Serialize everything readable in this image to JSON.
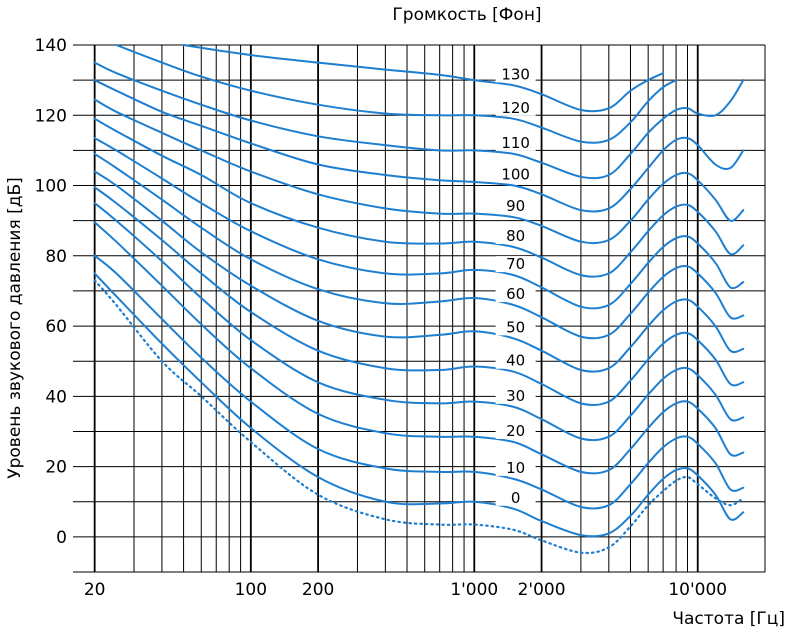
{
  "chart_data": {
    "type": "line",
    "title": "Громкость [Фон]",
    "xlabel": "Частота [Гц]",
    "ylabel": "Уровень звукового давления [дБ]",
    "x_scale": "log",
    "xlim": [
      16,
      20000
    ],
    "ylim": [
      -10,
      140
    ],
    "grid": true,
    "x_ticks": [
      {
        "value": 20,
        "label": "20"
      },
      {
        "value": 100,
        "label": "100"
      },
      {
        "value": 200,
        "label": "200"
      },
      {
        "value": 1000,
        "label": "1'000"
      },
      {
        "value": 2000,
        "label": "2'000"
      },
      {
        "value": 10000,
        "label": "10'000"
      }
    ],
    "y_ticks": [
      0,
      20,
      40,
      60,
      80,
      100,
      120,
      140
    ],
    "line_color": "#1e7fd0",
    "series": [
      {
        "name": "130",
        "label_x": 1500,
        "x": [
          50,
          80,
          120,
          200,
          400,
          700,
          1000,
          1500,
          2000,
          3000,
          4000,
          5000,
          6000,
          7000
        ],
        "y": [
          140,
          138,
          136.5,
          135,
          133,
          131.5,
          130,
          128.5,
          126,
          121.5,
          122,
          127,
          130,
          132
        ]
      },
      {
        "name": "120",
        "label_x": 1500,
        "x": [
          25,
          40,
          60,
          100,
          200,
          400,
          700,
          1000,
          1500,
          2000,
          3000,
          4000,
          5000,
          6000,
          7000,
          8000
        ],
        "y": [
          140,
          135,
          131,
          127,
          123,
          120.5,
          120,
          120,
          119,
          116.5,
          112.5,
          113,
          118,
          124,
          128,
          130
        ]
      },
      {
        "name": "110",
        "label_x": 1500,
        "x": [
          20,
          25,
          40,
          60,
          100,
          200,
          400,
          700,
          1000,
          1500,
          2000,
          3000,
          4000,
          5000,
          6000,
          7000,
          8000,
          9000,
          10000,
          12000,
          14000,
          16000
        ],
        "y": [
          135,
          132,
          127,
          123,
          118.5,
          114,
          111.5,
          110,
          110,
          109,
          106.5,
          102.5,
          103,
          109,
          115,
          119,
          121.5,
          122,
          120.5,
          120,
          124,
          130
        ]
      },
      {
        "name": "100",
        "label_x": 1500,
        "x": [
          20,
          25,
          40,
          60,
          100,
          200,
          400,
          700,
          1000,
          1500,
          2000,
          3000,
          4000,
          5000,
          6000,
          7000,
          8000,
          9000,
          10000,
          12000,
          14000,
          16000
        ],
        "y": [
          130,
          127,
          121,
          117,
          112,
          106,
          103,
          101.5,
          101,
          100,
          97.5,
          93,
          93.5,
          99,
          105,
          110,
          113,
          113.5,
          111.5,
          106,
          105,
          110
        ]
      },
      {
        "name": "90",
        "label_x": 1500,
        "x": [
          20,
          25,
          40,
          60,
          100,
          200,
          400,
          700,
          1000,
          1500,
          2000,
          3000,
          4000,
          5000,
          6000,
          7000,
          8000,
          9000,
          10000,
          12000,
          14000,
          16000
        ],
        "y": [
          124.5,
          121,
          115,
          110,
          104,
          97.5,
          93.5,
          92,
          92,
          91,
          88.5,
          84,
          84.5,
          90,
          96,
          100.5,
          103,
          103.5,
          101.5,
          96,
          90,
          93
        ]
      },
      {
        "name": "80",
        "label_x": 1500,
        "x": [
          20,
          25,
          40,
          60,
          100,
          200,
          400,
          700,
          1000,
          1500,
          2000,
          3000,
          4000,
          5000,
          6000,
          7000,
          8000,
          9000,
          10000,
          12000,
          14000,
          16000
        ],
        "y": [
          119,
          115.5,
          108.5,
          103,
          95,
          88,
          84,
          83.5,
          84,
          82.5,
          79.5,
          74.5,
          75,
          81,
          87,
          91.5,
          94,
          94.5,
          92.5,
          87,
          80.5,
          83
        ]
      },
      {
        "name": "70",
        "label_x": 1500,
        "x": [
          20,
          25,
          40,
          60,
          100,
          200,
          400,
          700,
          1000,
          1500,
          2000,
          3000,
          4000,
          5000,
          6000,
          7000,
          8000,
          9000,
          10000,
          12000,
          14000,
          16000
        ],
        "y": [
          113.5,
          110,
          102,
          95,
          87,
          79,
          75,
          75,
          76,
          74.5,
          71,
          65.5,
          66,
          72,
          78,
          82.5,
          85,
          85.5,
          83.5,
          78,
          71,
          72.5
        ]
      },
      {
        "name": "60",
        "label_x": 1500,
        "x": [
          20,
          25,
          40,
          60,
          100,
          200,
          400,
          700,
          1000,
          1500,
          2000,
          3000,
          4000,
          5000,
          6000,
          7000,
          8000,
          9000,
          10000,
          12000,
          14000,
          16000
        ],
        "y": [
          109,
          105,
          96,
          88,
          79,
          70.5,
          66.5,
          67,
          68,
          66,
          62.5,
          57,
          57.5,
          63.5,
          69.5,
          74,
          76.5,
          77,
          75,
          69.5,
          62.5,
          63
        ]
      },
      {
        "name": "50",
        "label_x": 1500,
        "x": [
          20,
          25,
          40,
          60,
          100,
          200,
          400,
          700,
          1000,
          1500,
          2000,
          3000,
          4000,
          5000,
          6000,
          7000,
          8000,
          9000,
          10000,
          12000,
          14000,
          16000
        ],
        "y": [
          104,
          100,
          90,
          81,
          71.5,
          61.5,
          57,
          57.5,
          58.5,
          56.5,
          53,
          47.5,
          48,
          54,
          60,
          64.5,
          67,
          67.5,
          65.5,
          60,
          53,
          53.5
        ]
      },
      {
        "name": "40",
        "label_x": 1500,
        "x": [
          20,
          25,
          40,
          60,
          100,
          200,
          400,
          700,
          1000,
          1500,
          2000,
          3000,
          4000,
          5000,
          6000,
          7000,
          8000,
          9000,
          10000,
          12000,
          14000,
          16000
        ],
        "y": [
          99.5,
          95,
          84.5,
          75,
          64,
          53,
          48,
          47.5,
          48.5,
          47,
          43.5,
          38,
          38.5,
          44.5,
          50.5,
          55,
          57.5,
          58,
          56,
          50.5,
          43.5,
          44
        ]
      },
      {
        "name": "30",
        "label_x": 1500,
        "x": [
          20,
          25,
          40,
          60,
          100,
          200,
          400,
          700,
          1000,
          1500,
          2000,
          3000,
          4000,
          5000,
          6000,
          7000,
          8000,
          9000,
          10000,
          12000,
          14000,
          16000
        ],
        "y": [
          95,
          90,
          78.5,
          68,
          56,
          44,
          39,
          38,
          38.5,
          37,
          33.5,
          28,
          28.5,
          34.5,
          40.5,
          45,
          47.5,
          48,
          46,
          40.5,
          33.5,
          34
        ]
      },
      {
        "name": "20",
        "label_x": 1500,
        "x": [
          20,
          25,
          40,
          60,
          100,
          200,
          400,
          700,
          1000,
          1500,
          2000,
          3000,
          4000,
          5000,
          6000,
          7000,
          8000,
          9000,
          10000,
          12000,
          14000,
          16000
        ],
        "y": [
          89.5,
          84,
          71.5,
          60.5,
          48,
          35,
          29.5,
          28.5,
          28.5,
          27,
          23.5,
          18.5,
          19,
          25,
          31,
          35.5,
          38,
          38.5,
          36.5,
          31,
          23.5,
          24
        ]
      },
      {
        "name": "10",
        "label_x": 1500,
        "x": [
          20,
          25,
          40,
          60,
          100,
          200,
          400,
          700,
          1000,
          1500,
          2000,
          3000,
          4000,
          5000,
          6000,
          7000,
          8000,
          9000,
          10000,
          12000,
          14000,
          16000
        ],
        "y": [
          80,
          75,
          62,
          51,
          38.5,
          25,
          19.5,
          18.5,
          18.5,
          16.5,
          13.5,
          8.5,
          9,
          15,
          21,
          25.5,
          28,
          28.5,
          26.5,
          21,
          13.5,
          14
        ]
      },
      {
        "name": "0",
        "label_x": 1500,
        "x": [
          20,
          25,
          40,
          60,
          100,
          200,
          400,
          700,
          1000,
          1500,
          2000,
          3000,
          4000,
          5000,
          6000,
          7000,
          8000,
          9000,
          10000,
          12000,
          14000,
          16000
        ],
        "y": [
          75,
          68.5,
          55,
          44,
          31,
          17,
          10,
          9.5,
          10,
          8,
          4.5,
          0.5,
          1,
          6,
          12,
          16.5,
          19,
          19.5,
          17.5,
          12,
          5,
          7
        ]
      },
      {
        "name": "",
        "style": "dotted",
        "x": [
          20,
          25,
          40,
          60,
          100,
          200,
          400,
          700,
          1000,
          1500,
          2000,
          3000,
          4000,
          5000,
          6000,
          7000,
          8000,
          9000,
          10000,
          12000,
          14000,
          16000
        ],
        "y": [
          73,
          66,
          50,
          40,
          27,
          12,
          5,
          3.5,
          3.5,
          2,
          -1,
          -4.5,
          -3,
          3,
          9,
          13,
          16,
          17,
          15,
          11,
          9,
          11
        ]
      }
    ]
  }
}
